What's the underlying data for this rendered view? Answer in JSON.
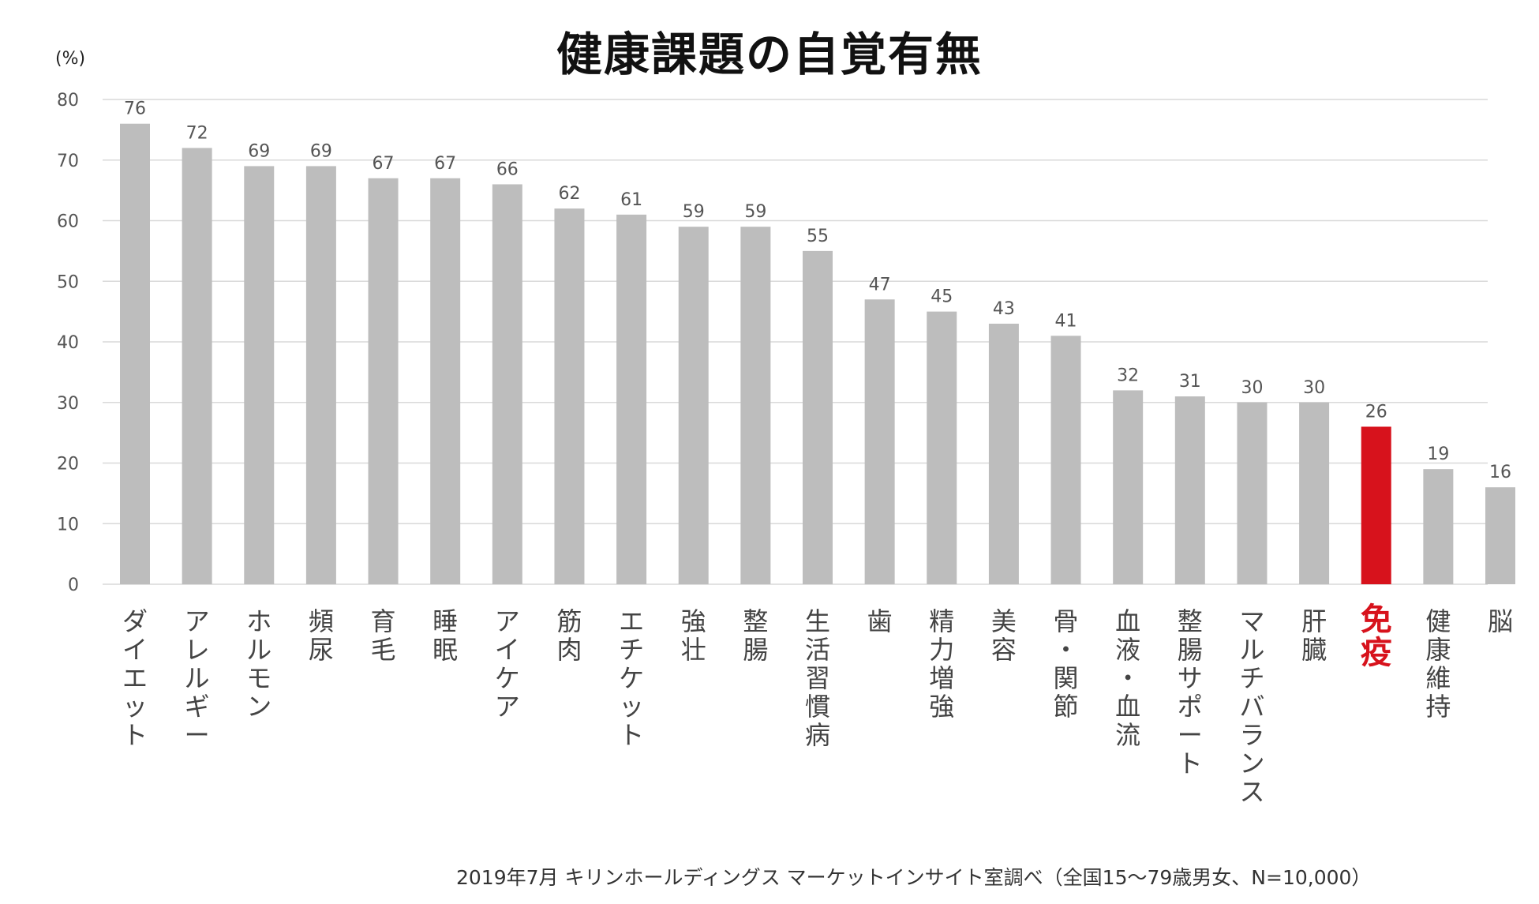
{
  "colors": {
    "bar": "#bdbdbd",
    "highlight_bar": "#d7121c",
    "grid": "#d9d9d9",
    "tick_text": "#555555",
    "label_text": "#444444"
  },
  "chart_data": {
    "type": "bar",
    "title": "健康課題の自覚有無",
    "ylabel": "(%)",
    "xlabel": "",
    "ylim": [
      0,
      80
    ],
    "yticks": [
      0,
      10,
      20,
      30,
      40,
      50,
      60,
      70,
      80
    ],
    "grid": true,
    "categories": [
      "ダイエット",
      "アレルギー",
      "ホルモン",
      "頻尿",
      "育毛",
      "睡眠",
      "アイケア",
      "筋肉",
      "エチケット",
      "強壮",
      "整腸",
      "生活習慣病",
      "歯",
      "精力増強",
      "美容",
      "骨・関節",
      "血液・血流",
      "整腸サポート",
      "マルチバランス",
      "肝臓",
      "免疫",
      "健康維持",
      "脳"
    ],
    "values": [
      76,
      72,
      69,
      69,
      67,
      67,
      66,
      62,
      61,
      59,
      59,
      55,
      47,
      45,
      43,
      41,
      32,
      31,
      30,
      30,
      26,
      19,
      16
    ],
    "highlight_index": 20
  },
  "footer": {
    "source": "2019年7月 キリンホールディングス マーケットインサイト室調べ（全国15～79歳男女、N=10,000）"
  }
}
